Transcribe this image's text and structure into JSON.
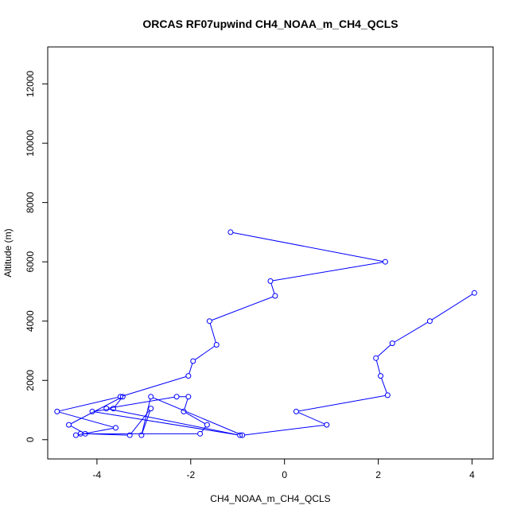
{
  "chart_data": {
    "type": "line",
    "title": "ORCAS RF07upwind CH4_NOAA_m_CH4_QCLS",
    "xlabel": "CH4_NOAA_m_CH4_QCLS",
    "ylabel": "Altitude (m)",
    "xlim": [
      -5.05,
      4.45
    ],
    "ylim": [
      -650,
      13250
    ],
    "xticks": [
      -4,
      -2,
      0,
      2,
      4
    ],
    "yticks": [
      0,
      2000,
      4000,
      6000,
      8000,
      10000,
      12000
    ],
    "grid": false,
    "colors": {
      "series": "#0000ff",
      "axes": "#000000"
    },
    "series": [
      {
        "x": [
          -1.15,
          2.15,
          -0.3,
          -0.2,
          -1.6,
          -1.45,
          -1.95,
          -2.05,
          -3.5,
          -4.85,
          -3.6,
          -4.45,
          -4.35,
          -1.8,
          -1.65,
          -2.15,
          -2.05,
          -2.3,
          -3.8,
          -0.95,
          -4.1,
          -3.65,
          -3.45,
          -4.6,
          -4.25,
          -3.3,
          -2.85,
          -3.05,
          -2.85,
          -0.9,
          0.9,
          0.25,
          2.2,
          2.05,
          1.95,
          2.3,
          3.1,
          4.05
        ],
        "y": [
          7000,
          6000,
          5350,
          4850,
          4000,
          3200,
          2650,
          2150,
          1450,
          950,
          400,
          150,
          200,
          200,
          500,
          950,
          1450,
          1450,
          1050,
          150,
          950,
          1050,
          1450,
          500,
          200,
          150,
          1050,
          150,
          1450,
          150,
          500,
          950,
          1500,
          2150,
          2750,
          3250,
          4000,
          4950
        ]
      }
    ]
  }
}
